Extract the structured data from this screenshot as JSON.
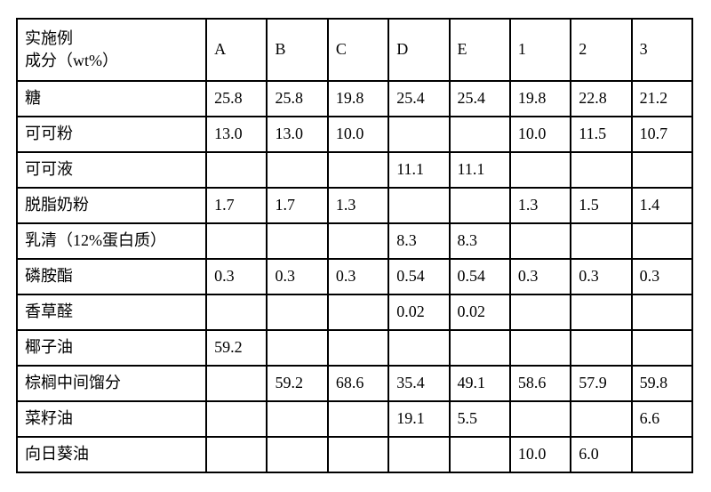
{
  "table": {
    "header_row_label": [
      "实施例",
      "成分（wt%）"
    ],
    "columns": [
      "A",
      "B",
      "C",
      "D",
      "E",
      "1",
      "2",
      "3"
    ],
    "rows": [
      {
        "label": "糖",
        "cells": [
          "25.8",
          "25.8",
          "19.8",
          "25.4",
          "25.4",
          "19.8",
          "22.8",
          "21.2"
        ]
      },
      {
        "label": "可可粉",
        "cells": [
          "13.0",
          "13.0",
          "10.0",
          "",
          "",
          "10.0",
          "11.5",
          "10.7"
        ]
      },
      {
        "label": "可可液",
        "cells": [
          "",
          "",
          "",
          "11.1",
          "11.1",
          "",
          "",
          ""
        ]
      },
      {
        "label": "脱脂奶粉",
        "cells": [
          "1.7",
          "1.7",
          "1.3",
          "",
          "",
          "1.3",
          "1.5",
          "1.4"
        ]
      },
      {
        "label": "乳清（12%蛋白质）",
        "cells": [
          "",
          "",
          "",
          "8.3",
          "8.3",
          "",
          "",
          ""
        ]
      },
      {
        "label": "磷胺酯",
        "cells": [
          "0.3",
          "0.3",
          "0.3",
          "0.54",
          "0.54",
          "0.3",
          "0.3",
          "0.3"
        ]
      },
      {
        "label": "香草醛",
        "cells": [
          "",
          "",
          "",
          "0.02",
          "0.02",
          "",
          "",
          ""
        ]
      },
      {
        "label": "椰子油",
        "cells": [
          "59.2",
          "",
          "",
          "",
          "",
          "",
          "",
          ""
        ]
      },
      {
        "label": "棕榈中间馏分",
        "cells": [
          "",
          "59.2",
          "68.6",
          "35.4",
          "49.1",
          "58.6",
          "57.9",
          "59.8"
        ]
      },
      {
        "label": "菜籽油",
        "cells": [
          "",
          "",
          "",
          "19.1",
          "5.5",
          "",
          "",
          "6.6"
        ]
      },
      {
        "label": "向日葵油",
        "cells": [
          "",
          "",
          "",
          "",
          "",
          "10.0",
          "6.0",
          ""
        ]
      }
    ]
  },
  "style": {
    "border_color": "#000000",
    "text_color": "#000000",
    "background": "#ffffff",
    "font_family": "SimSun",
    "font_size_pt": 14
  }
}
